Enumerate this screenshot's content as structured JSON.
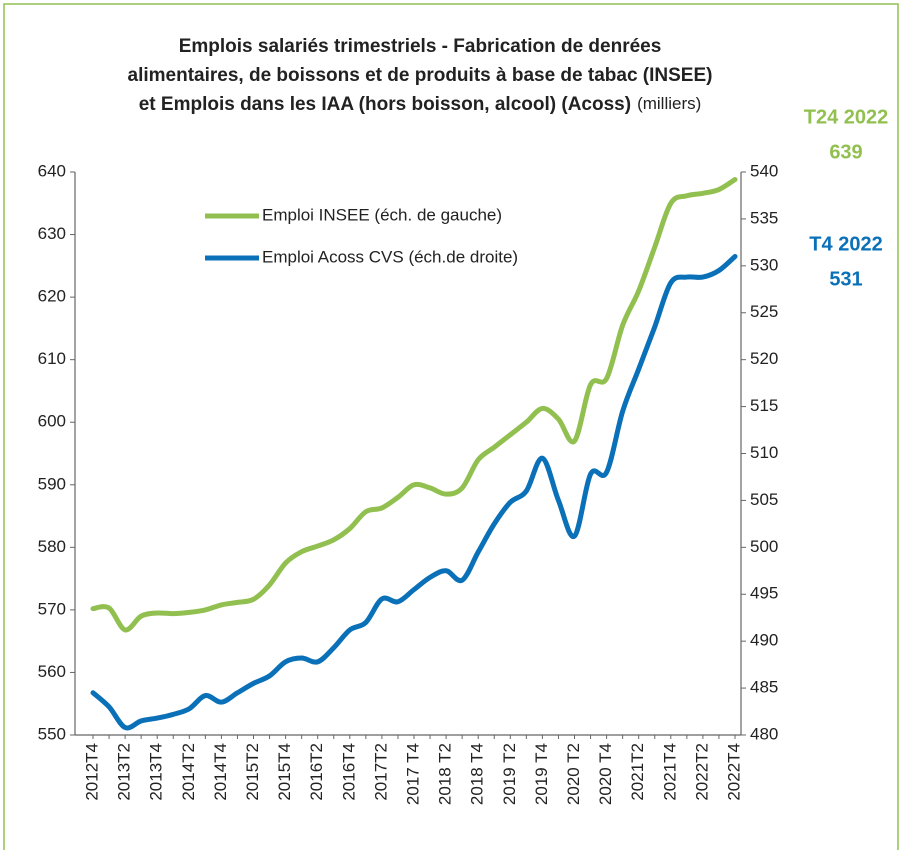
{
  "chart_data": {
    "type": "line",
    "title": [
      "Emplois salariés trimestriels - Fabrication de denrées",
      "alimentaires, de boissons et de produits à base de tabac (INSEE)",
      "et Emplois dans les IAA (hors boisson, alcool) (Acoss)"
    ],
    "title_unit": "(milliers)",
    "categories": [
      "2012T4",
      null,
      "2013T2",
      null,
      "2013T4",
      null,
      "2014T2",
      null,
      "2014T4",
      null,
      "2015T2",
      null,
      "2015T4",
      null,
      "2016T2",
      null,
      "2016T4",
      null,
      "2017T2",
      null,
      "2017 T4",
      null,
      "2018 T2",
      null,
      "2018 T4",
      null,
      "2019 T2",
      null,
      "2019 T4",
      null,
      "2020 T2",
      null,
      "2020 T4",
      null,
      "2021T2",
      null,
      "2021T4",
      null,
      "2022T2",
      null,
      "2022T4"
    ],
    "series": [
      {
        "name": "Emploi INSEE (éch. de gauche)",
        "color": "#92c050",
        "axis": "y",
        "values": [
          570.2,
          570.3,
          566.8,
          569,
          569.5,
          569.4,
          569.6,
          570,
          570.8,
          571.2,
          571.7,
          574,
          577.5,
          579.3,
          580.2,
          581.2,
          583,
          585.7,
          586.3,
          588,
          590,
          589.5,
          588.5,
          589.5,
          594,
          596,
          598,
          600,
          602.2,
          600.5,
          597,
          606,
          607,
          615.5,
          621,
          628,
          635,
          636.2,
          636.6,
          637.2,
          638.8
        ]
      },
      {
        "name": "Emploi Acoss CVS (éch.de droite)",
        "color": "#0a70b8",
        "axis": "y2",
        "values": [
          484.5,
          483,
          480.8,
          481.5,
          481.8,
          482.2,
          482.8,
          484.2,
          483.5,
          484.5,
          485.5,
          486.3,
          487.8,
          488.2,
          487.8,
          489.3,
          491.2,
          492,
          494.5,
          494.2,
          495.5,
          496.8,
          497.5,
          496.5,
          499.5,
          502.5,
          504.8,
          506,
          509.5,
          505,
          501.2,
          507.8,
          508,
          514.5,
          519,
          523.5,
          528.2,
          528.8,
          528.8,
          529.5,
          531
        ]
      }
    ],
    "ylim": [
      550,
      640
    ],
    "yticks": [
      550,
      560,
      570,
      580,
      590,
      600,
      610,
      620,
      630,
      640
    ],
    "y2lim": [
      480,
      540
    ],
    "y2ticks": [
      480,
      485,
      490,
      495,
      500,
      505,
      510,
      515,
      520,
      525,
      530,
      535,
      540
    ],
    "legend": "upper left",
    "annotations": [
      {
        "lines": [
          "T24 2022",
          "639"
        ],
        "color": "#92c050"
      },
      {
        "lines": [
          "T4 2022",
          "531"
        ],
        "color": "#0a70b8"
      }
    ]
  }
}
